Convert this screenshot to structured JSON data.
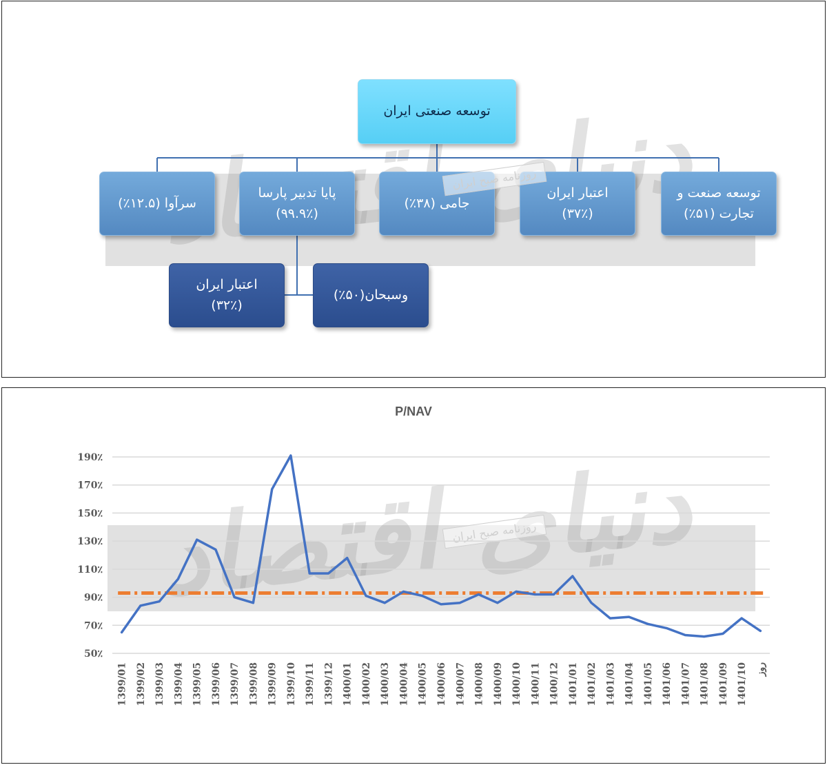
{
  "org_chart": {
    "root": "توسعه صنعتی ایران",
    "level1": [
      "سرآوا (۱۲.۵٪)",
      "پایا تدبیر پارسا\n(۹۹.۹٪)",
      "جامی (۳۸٪)",
      "اعتبار ایران\n(۳۷٪)",
      "توسعه صنعت و\nتجارت (۵۱٪)"
    ],
    "level2": [
      "اعتبار ایران\n(۳۲٪)",
      "وسبحان(۵۰٪)"
    ],
    "colors": {
      "root": "#5fd4f7",
      "level1": "#5f93c9",
      "level2": "#33549a",
      "connector": "#3f6fb0"
    }
  },
  "watermark": {
    "stamp_text": "روزنامه صبح ایران",
    "logo_text": "دنیای اقتصاد"
  },
  "chart_data": {
    "type": "line",
    "title": "P/NAV",
    "categories": [
      "1399/01",
      "1399/02",
      "1399/03",
      "1399/04",
      "1399/05",
      "1399/06",
      "1399/07",
      "1399/08",
      "1399/09",
      "1399/10",
      "1399/11",
      "1399/12",
      "1400/01",
      "1400/02",
      "1400/03",
      "1400/04",
      "1400/05",
      "1400/06",
      "1400/07",
      "1400/08",
      "1400/09",
      "1400/10",
      "1400/11",
      "1400/12",
      "1401/01",
      "1401/02",
      "1401/03",
      "1401/04",
      "1401/05",
      "1401/06",
      "1401/07",
      "1401/08",
      "1401/09",
      "1401/10",
      "روز"
    ],
    "series": [
      {
        "values": [
          65,
          84,
          87,
          103,
          131,
          124,
          90,
          86,
          167,
          191,
          107,
          107,
          118,
          91,
          86,
          94,
          91,
          85,
          86,
          92,
          86,
          94,
          92,
          92,
          105,
          86,
          75,
          76,
          71,
          68,
          63,
          62,
          64,
          75,
          66
        ],
        "color": "#4472c4"
      }
    ],
    "reference_line": {
      "value": 93,
      "color": "#ed7d31",
      "style": "dash-dot"
    },
    "y_ticks": [
      "190٪",
      "170٪",
      "150٪",
      "130٪",
      "110٪",
      "90٪",
      "70٪",
      "50٪"
    ],
    "ylim": [
      50,
      190
    ],
    "grid": true,
    "xlabel": "",
    "ylabel": ""
  }
}
